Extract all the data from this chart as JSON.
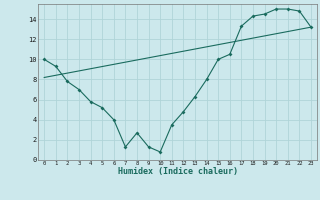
{
  "xlabel": "Humidex (Indice chaleur)",
  "bg_color": "#cce8ec",
  "grid_color": "#b0d4d8",
  "line_color": "#1a6b5e",
  "line1_x": [
    0,
    1,
    2,
    3,
    4,
    5,
    6,
    7,
    8,
    9,
    10,
    11,
    12,
    13,
    14,
    15,
    16,
    17,
    18,
    19,
    20,
    21,
    22,
    23
  ],
  "line1_y": [
    10.0,
    9.3,
    7.8,
    7.0,
    5.8,
    5.2,
    4.0,
    1.3,
    2.7,
    1.3,
    0.8,
    3.5,
    4.8,
    6.3,
    8.0,
    10.0,
    10.5,
    13.3,
    14.3,
    14.5,
    15.0,
    15.0,
    14.8,
    13.2
  ],
  "line2_x": [
    0,
    23
  ],
  "line2_y": [
    8.2,
    13.2
  ],
  "xlim": [
    -0.5,
    23.5
  ],
  "ylim": [
    0,
    15.5
  ],
  "xticks": [
    0,
    1,
    2,
    3,
    4,
    5,
    6,
    7,
    8,
    9,
    10,
    11,
    12,
    13,
    14,
    15,
    16,
    17,
    18,
    19,
    20,
    21,
    22,
    23
  ],
  "yticks": [
    0,
    2,
    4,
    6,
    8,
    10,
    12,
    14
  ],
  "figsize": [
    3.2,
    2.0
  ],
  "dpi": 100
}
